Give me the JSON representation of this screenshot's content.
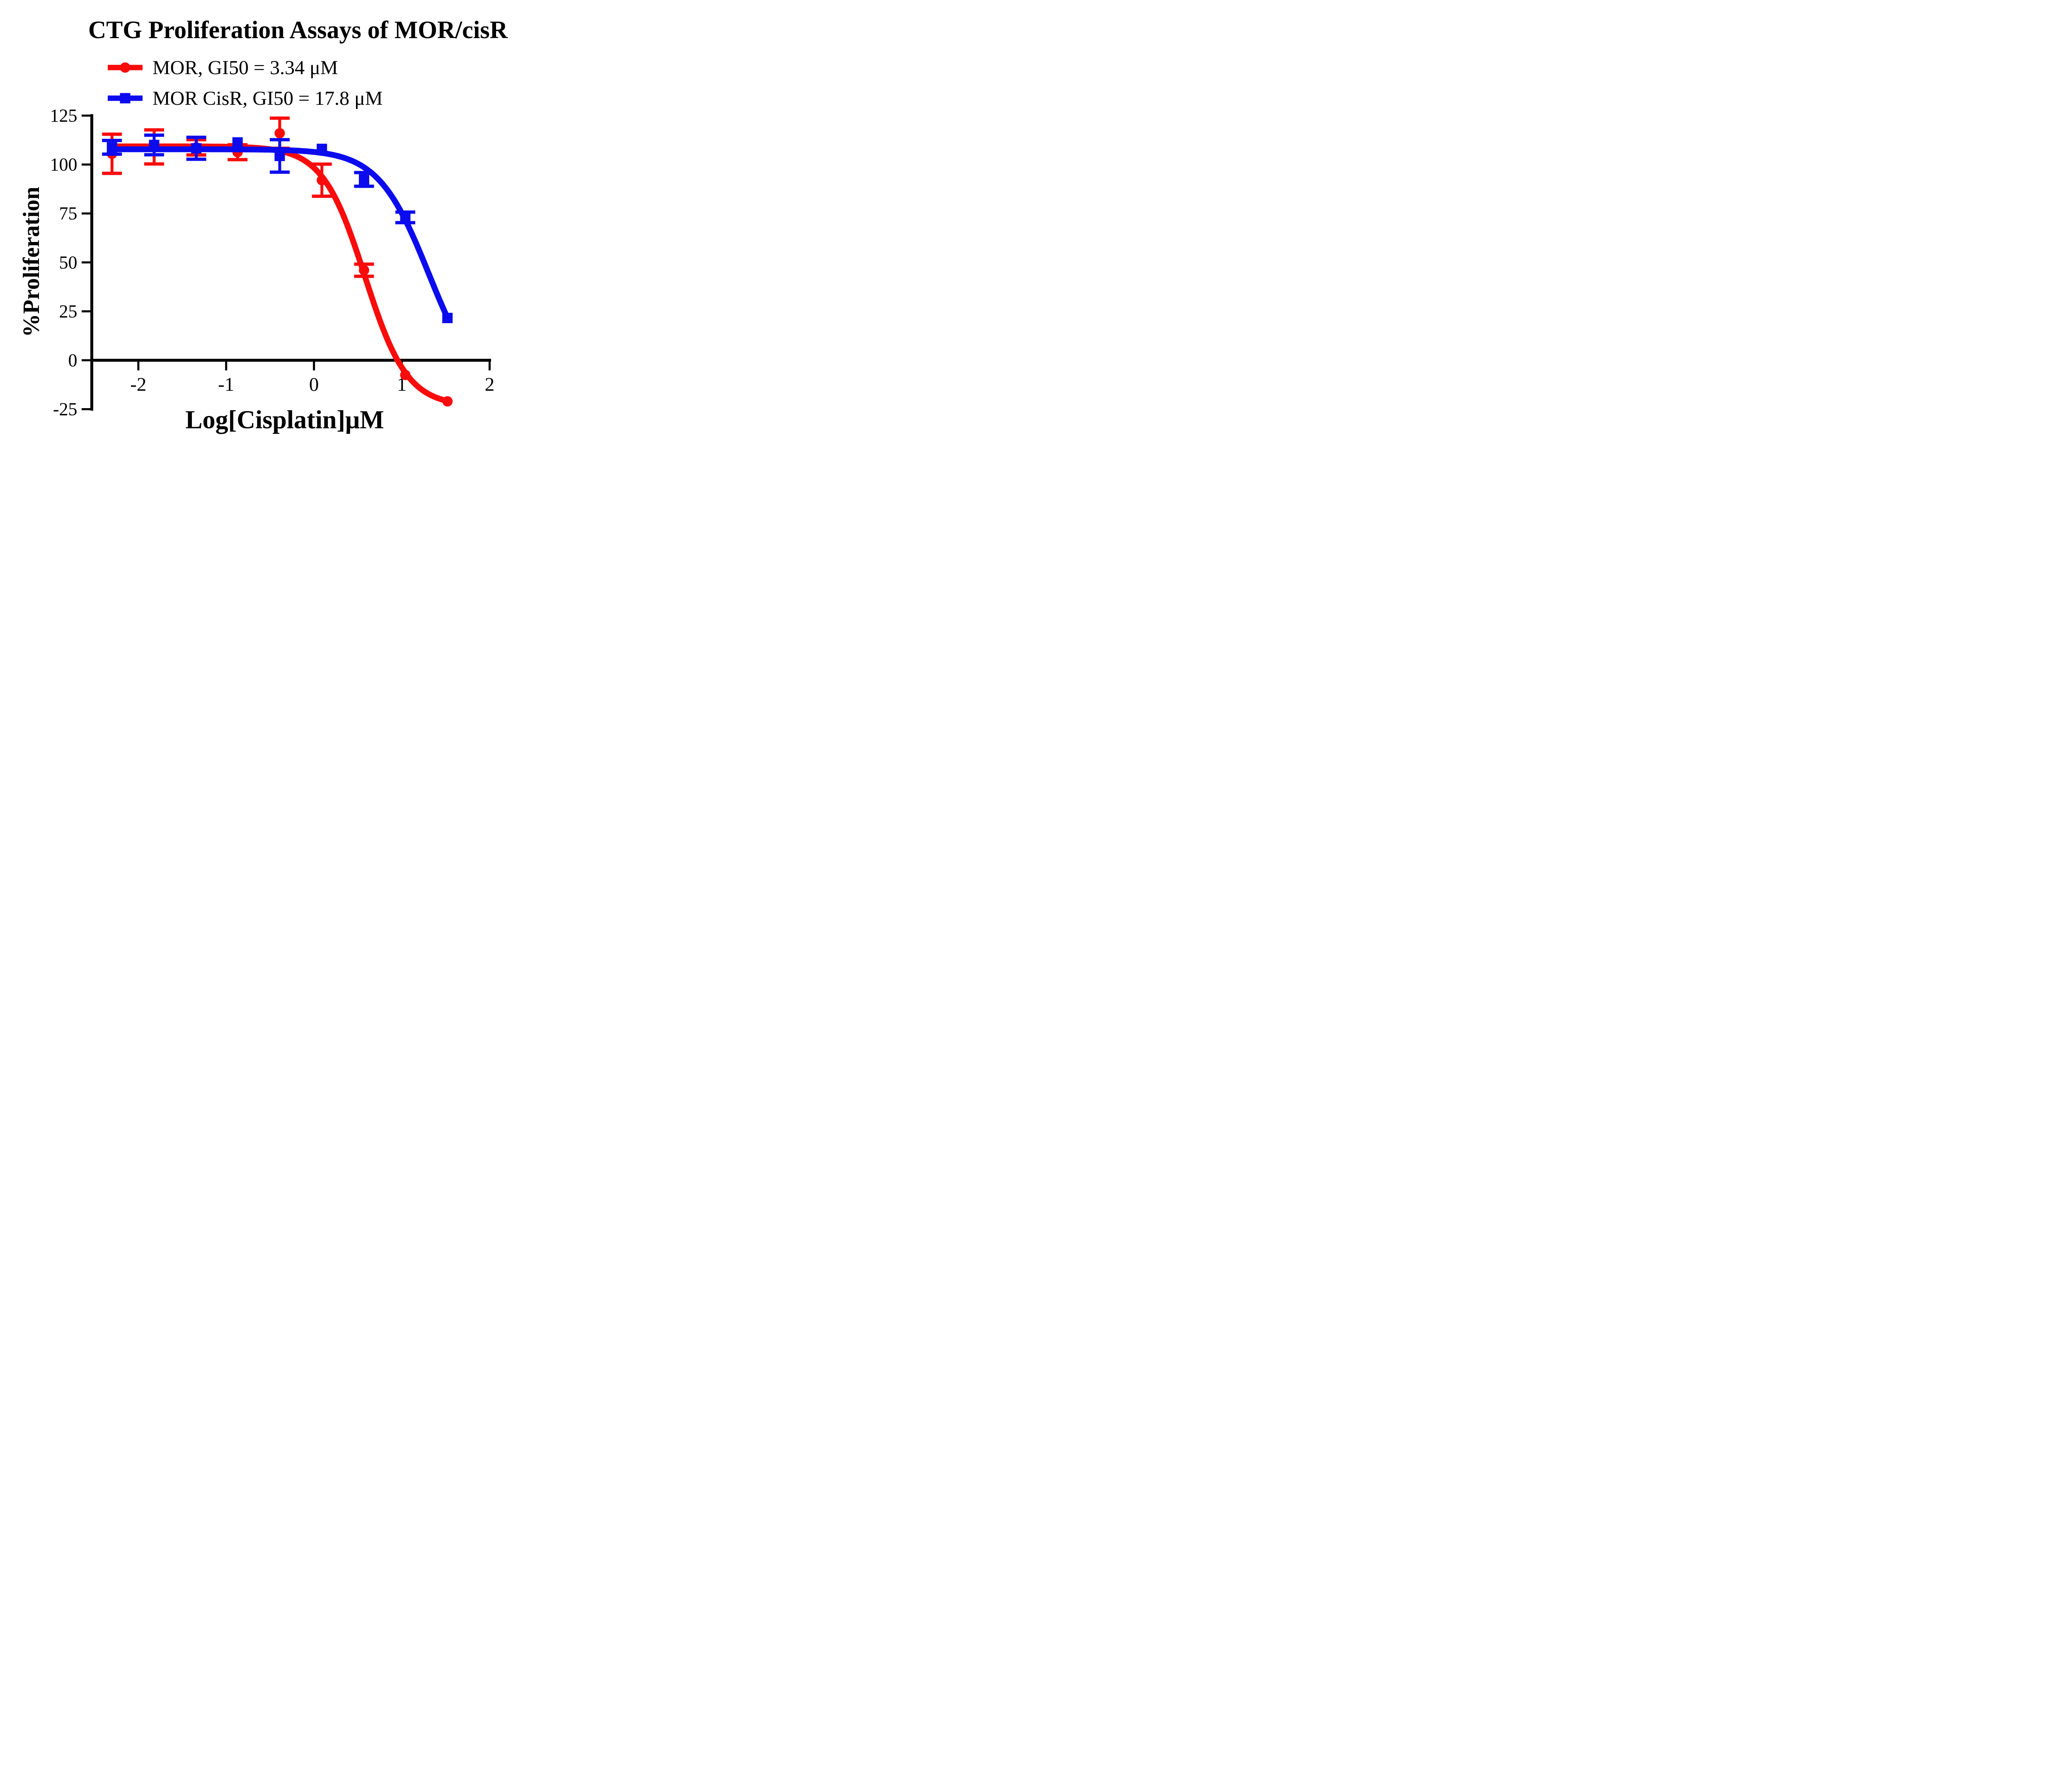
{
  "figure": {
    "title": "CTG Proliferation Assays of MOR/cisR",
    "x_axis_title": "Log[Cisplatin]μM",
    "y_axis_title": "%Proliferation"
  },
  "chart_data": {
    "type": "scatter",
    "subtype": "dose-response curves with error bars and sigmoidal fits",
    "title": "CTG Proliferation Assays of MOR/cisR",
    "xlabel": "Log[Cisplatin]μM",
    "ylabel": "%Proliferation",
    "xlim": [
      -2.53,
      2
    ],
    "ylim": [
      -25,
      125
    ],
    "x_ticks": [
      "-2",
      "-1",
      "0",
      "1",
      "2"
    ],
    "x_tick_values": [
      -2,
      -1,
      0,
      1,
      2
    ],
    "y_ticks": [
      "125",
      "100",
      "75",
      "50",
      "25",
      "0",
      "-25"
    ],
    "y_tick_values": [
      125,
      100,
      75,
      50,
      25,
      0,
      -25
    ],
    "grid": false,
    "legend_position": "top-left, above plot area",
    "x": [
      -2.3,
      -1.82,
      -1.34,
      -0.87,
      -0.39,
      0.09,
      0.57,
      1.04,
      1.52
    ],
    "series": [
      {
        "name": "MOR",
        "legend_label": "MOR, GI50 = 3.34 μM",
        "gi50_um": 3.34,
        "color": "#F90C0B",
        "marker": "circle",
        "values": [
          105.5,
          109.0,
          108.8,
          106.3,
          116.0,
          92.0,
          46.0,
          -7.5,
          -21.0
        ],
        "errors": [
          10.0,
          8.7,
          3.9,
          3.8,
          7.7,
          8.2,
          3.1,
          0,
          0
        ],
        "fit": {
          "top": 109.3,
          "bottom": -23.5,
          "loggi50": 0.58,
          "hill": 1.8,
          "x_start": -2.31,
          "x_end": 1.52
        }
      },
      {
        "name": "MOR CisR",
        "legend_label": "MOR CisR, GI50 = 17.8 μM",
        "gi50_um": 17.8,
        "color": "#0B0BEE",
        "marker": "square",
        "values": [
          108.8,
          110.0,
          108.3,
          111.3,
          104.4,
          108.0,
          92.4,
          73.0,
          21.6
        ],
        "errors": [
          3.5,
          5.0,
          5.6,
          0,
          8.3,
          0,
          3.5,
          2.7,
          0
        ],
        "fit": {
          "top": 107.8,
          "bottom": -20.0,
          "loggi50": 1.31,
          "hill": 1.5,
          "x_start": -2.31,
          "x_end": 1.52
        }
      }
    ]
  },
  "legend": {
    "row1": "MOR, GI50 = 3.34 μM",
    "row2": "MOR CisR, GI50 = 17.8 μM"
  }
}
